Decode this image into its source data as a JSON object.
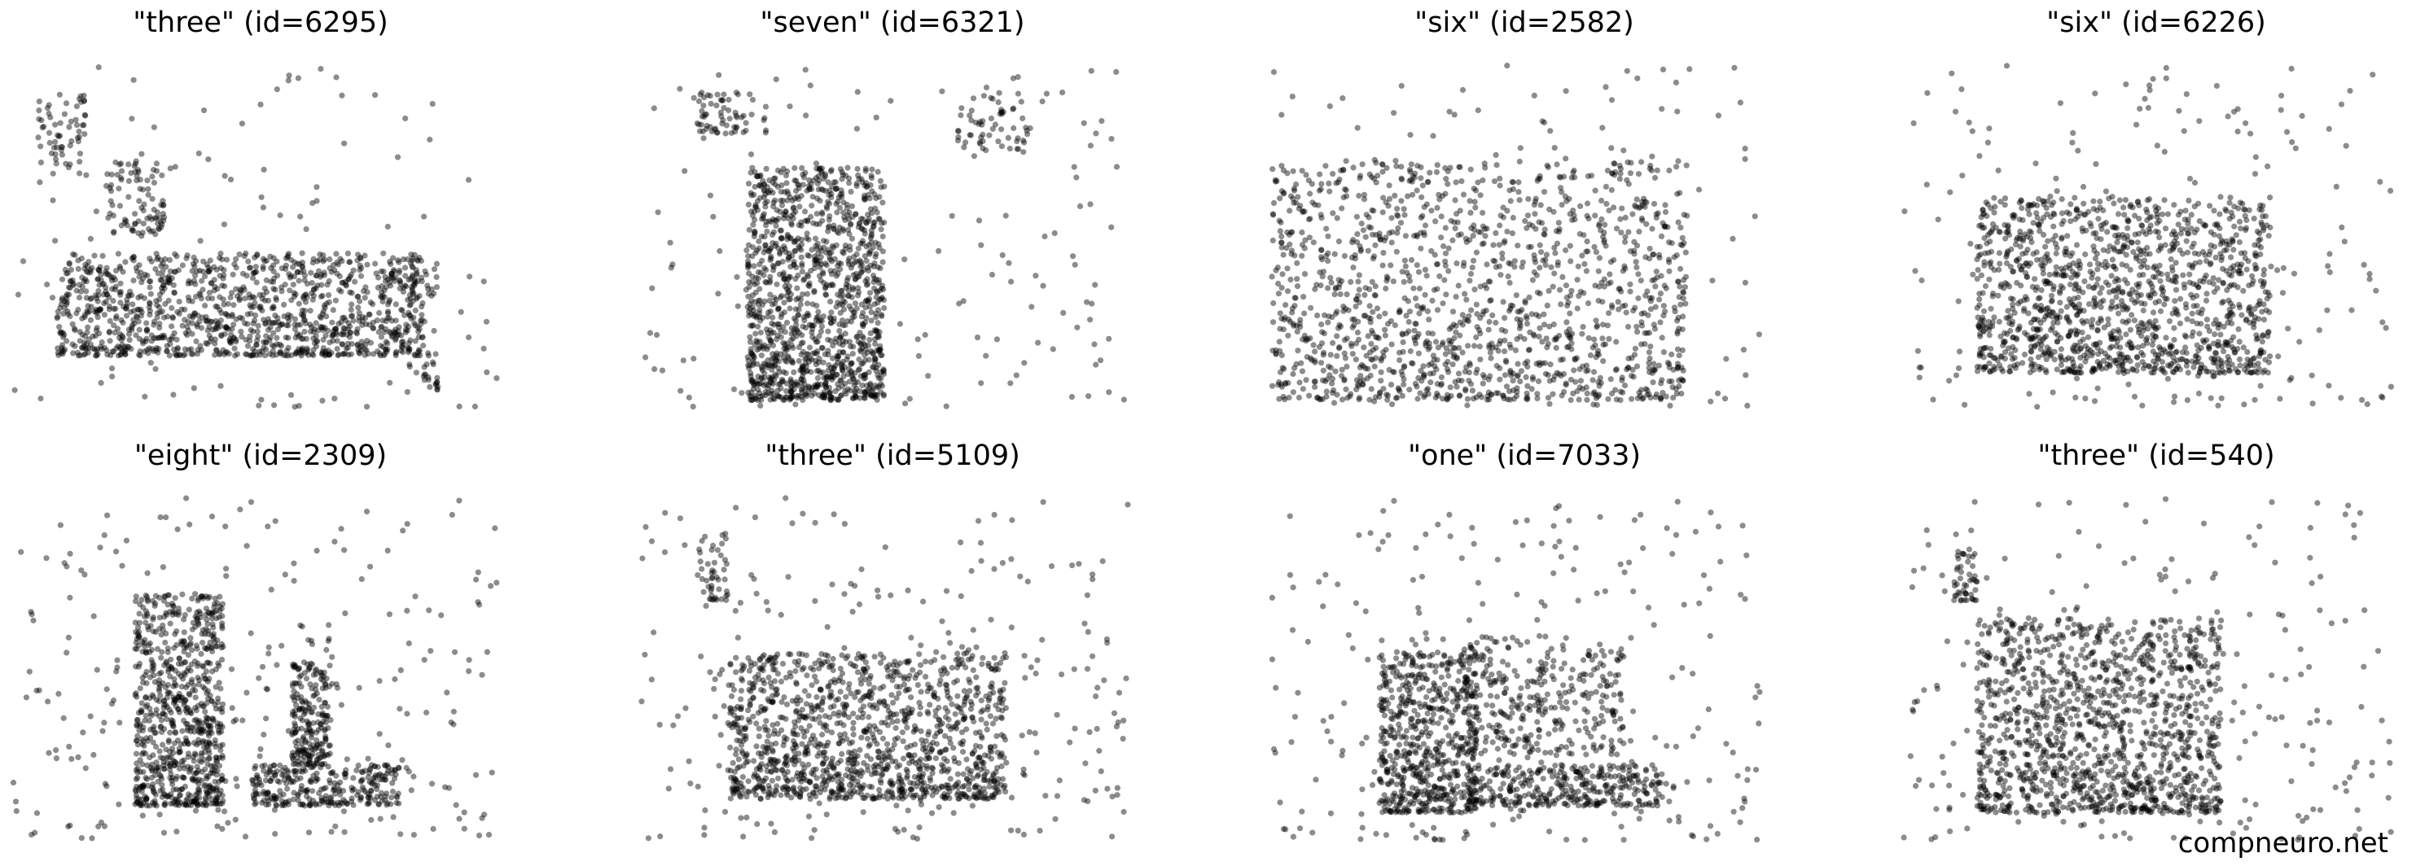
{
  "footer": {
    "watermark": "compneuro.net"
  },
  "chart_data": [
    {
      "type": "scatter",
      "title": "\"three\" (id=6295)",
      "description_shape": "plateau",
      "xlim": [
        0,
        1
      ],
      "ylim": [
        0,
        1
      ],
      "series": [
        {
          "color": "#000000",
          "alpha": 0.45,
          "density": "high",
          "clusters": [
            {
              "x": [
                0.1,
                0.85
              ],
              "y": [
                0.15,
                0.45
              ],
              "weight": 0.78
            },
            {
              "x": [
                0.2,
                0.32
              ],
              "y": [
                0.5,
                0.72
              ],
              "weight": 0.06
            },
            {
              "x": [
                0.06,
                0.16
              ],
              "y": [
                0.7,
                0.92
              ],
              "weight": 0.04
            },
            {
              "x": [
                0.82,
                0.88
              ],
              "y": [
                0.05,
                0.45
              ],
              "weight": 0.04
            },
            {
              "x": [
                0.0,
                1.0
              ],
              "y": [
                0.0,
                1.0
              ],
              "weight": 0.08
            }
          ]
        }
      ]
    },
    {
      "type": "scatter",
      "title": "\"seven\" (id=6321)",
      "xlim": [
        0,
        1
      ],
      "ylim": [
        0,
        1
      ],
      "series": [
        {
          "color": "#000000",
          "alpha": 0.45,
          "density": "high",
          "clusters": [
            {
              "x": [
                0.22,
                0.5
              ],
              "y": [
                0.02,
                0.7
              ],
              "weight": 0.82
            },
            {
              "x": [
                0.12,
                0.26
              ],
              "y": [
                0.8,
                0.92
              ],
              "weight": 0.04
            },
            {
              "x": [
                0.65,
                0.8
              ],
              "y": [
                0.75,
                0.92
              ],
              "weight": 0.04
            },
            {
              "x": [
                0.0,
                1.0
              ],
              "y": [
                0.0,
                1.0
              ],
              "weight": 0.1
            }
          ]
        }
      ]
    },
    {
      "type": "scatter",
      "title": "\"six\" (id=2582)",
      "xlim": [
        0,
        1
      ],
      "ylim": [
        0,
        1
      ],
      "series": [
        {
          "color": "#000000",
          "alpha": 0.45,
          "density": "high",
          "clusters": [
            {
              "x": [
                0.0,
                0.85
              ],
              "y": [
                0.02,
                0.72
              ],
              "weight": 0.9
            },
            {
              "x": [
                0.0,
                1.0
              ],
              "y": [
                0.0,
                1.0
              ],
              "weight": 0.1
            }
          ]
        }
      ]
    },
    {
      "type": "scatter",
      "title": "\"six\" (id=6226)",
      "xlim": [
        0,
        1
      ],
      "ylim": [
        0,
        1
      ],
      "series": [
        {
          "color": "#000000",
          "alpha": 0.45,
          "density": "high",
          "clusters": [
            {
              "x": [
                0.15,
                0.75
              ],
              "y": [
                0.1,
                0.62
              ],
              "weight": 0.85
            },
            {
              "x": [
                0.0,
                1.0
              ],
              "y": [
                0.0,
                1.0
              ],
              "weight": 0.15
            }
          ]
        }
      ]
    },
    {
      "type": "scatter",
      "title": "\"eight\" (id=2309)",
      "xlim": [
        0,
        1
      ],
      "ylim": [
        0,
        1
      ],
      "series": [
        {
          "color": "#000000",
          "alpha": 0.45,
          "density": "high",
          "clusters": [
            {
              "x": [
                0.26,
                0.44
              ],
              "y": [
                0.1,
                0.72
              ],
              "weight": 0.5
            },
            {
              "x": [
                0.5,
                0.8
              ],
              "y": [
                0.1,
                0.22
              ],
              "weight": 0.18
            },
            {
              "x": [
                0.58,
                0.66
              ],
              "y": [
                0.22,
                0.52
              ],
              "weight": 0.14
            },
            {
              "x": [
                0.0,
                1.0
              ],
              "y": [
                0.0,
                1.0
              ],
              "weight": 0.18
            }
          ]
        }
      ]
    },
    {
      "type": "scatter",
      "title": "\"three\" (id=5109)",
      "xlim": [
        0,
        1
      ],
      "ylim": [
        0,
        1
      ],
      "series": [
        {
          "color": "#000000",
          "alpha": 0.45,
          "density": "high",
          "clusters": [
            {
              "x": [
                0.18,
                0.75
              ],
              "y": [
                0.12,
                0.55
              ],
              "weight": 0.8
            },
            {
              "x": [
                0.12,
                0.18
              ],
              "y": [
                0.7,
                0.9
              ],
              "weight": 0.03
            },
            {
              "x": [
                0.0,
                1.0
              ],
              "y": [
                0.0,
                1.0
              ],
              "weight": 0.17
            }
          ]
        }
      ]
    },
    {
      "type": "scatter",
      "title": "\"one\" (id=7033)",
      "xlim": [
        0,
        1
      ],
      "ylim": [
        0,
        1
      ],
      "series": [
        {
          "color": "#000000",
          "alpha": 0.45,
          "density": "high",
          "clusters": [
            {
              "x": [
                0.22,
                0.42
              ],
              "y": [
                0.08,
                0.55
              ],
              "weight": 0.4
            },
            {
              "x": [
                0.4,
                0.8
              ],
              "y": [
                0.1,
                0.22
              ],
              "weight": 0.22
            },
            {
              "x": [
                0.4,
                0.72
              ],
              "y": [
                0.25,
                0.6
              ],
              "weight": 0.2
            },
            {
              "x": [
                0.0,
                1.0
              ],
              "y": [
                0.0,
                1.0
              ],
              "weight": 0.18
            }
          ]
        }
      ]
    },
    {
      "type": "scatter",
      "title": "\"three\" (id=540)",
      "xlim": [
        0,
        1
      ],
      "ylim": [
        0,
        1
      ],
      "series": [
        {
          "color": "#000000",
          "alpha": 0.45,
          "density": "high",
          "clusters": [
            {
              "x": [
                0.15,
                0.65
              ],
              "y": [
                0.08,
                0.65
              ],
              "weight": 0.82
            },
            {
              "x": [
                0.1,
                0.15
              ],
              "y": [
                0.7,
                0.85
              ],
              "weight": 0.03
            },
            {
              "x": [
                0.0,
                1.0
              ],
              "y": [
                0.0,
                1.0
              ],
              "weight": 0.15
            }
          ]
        }
      ]
    }
  ]
}
